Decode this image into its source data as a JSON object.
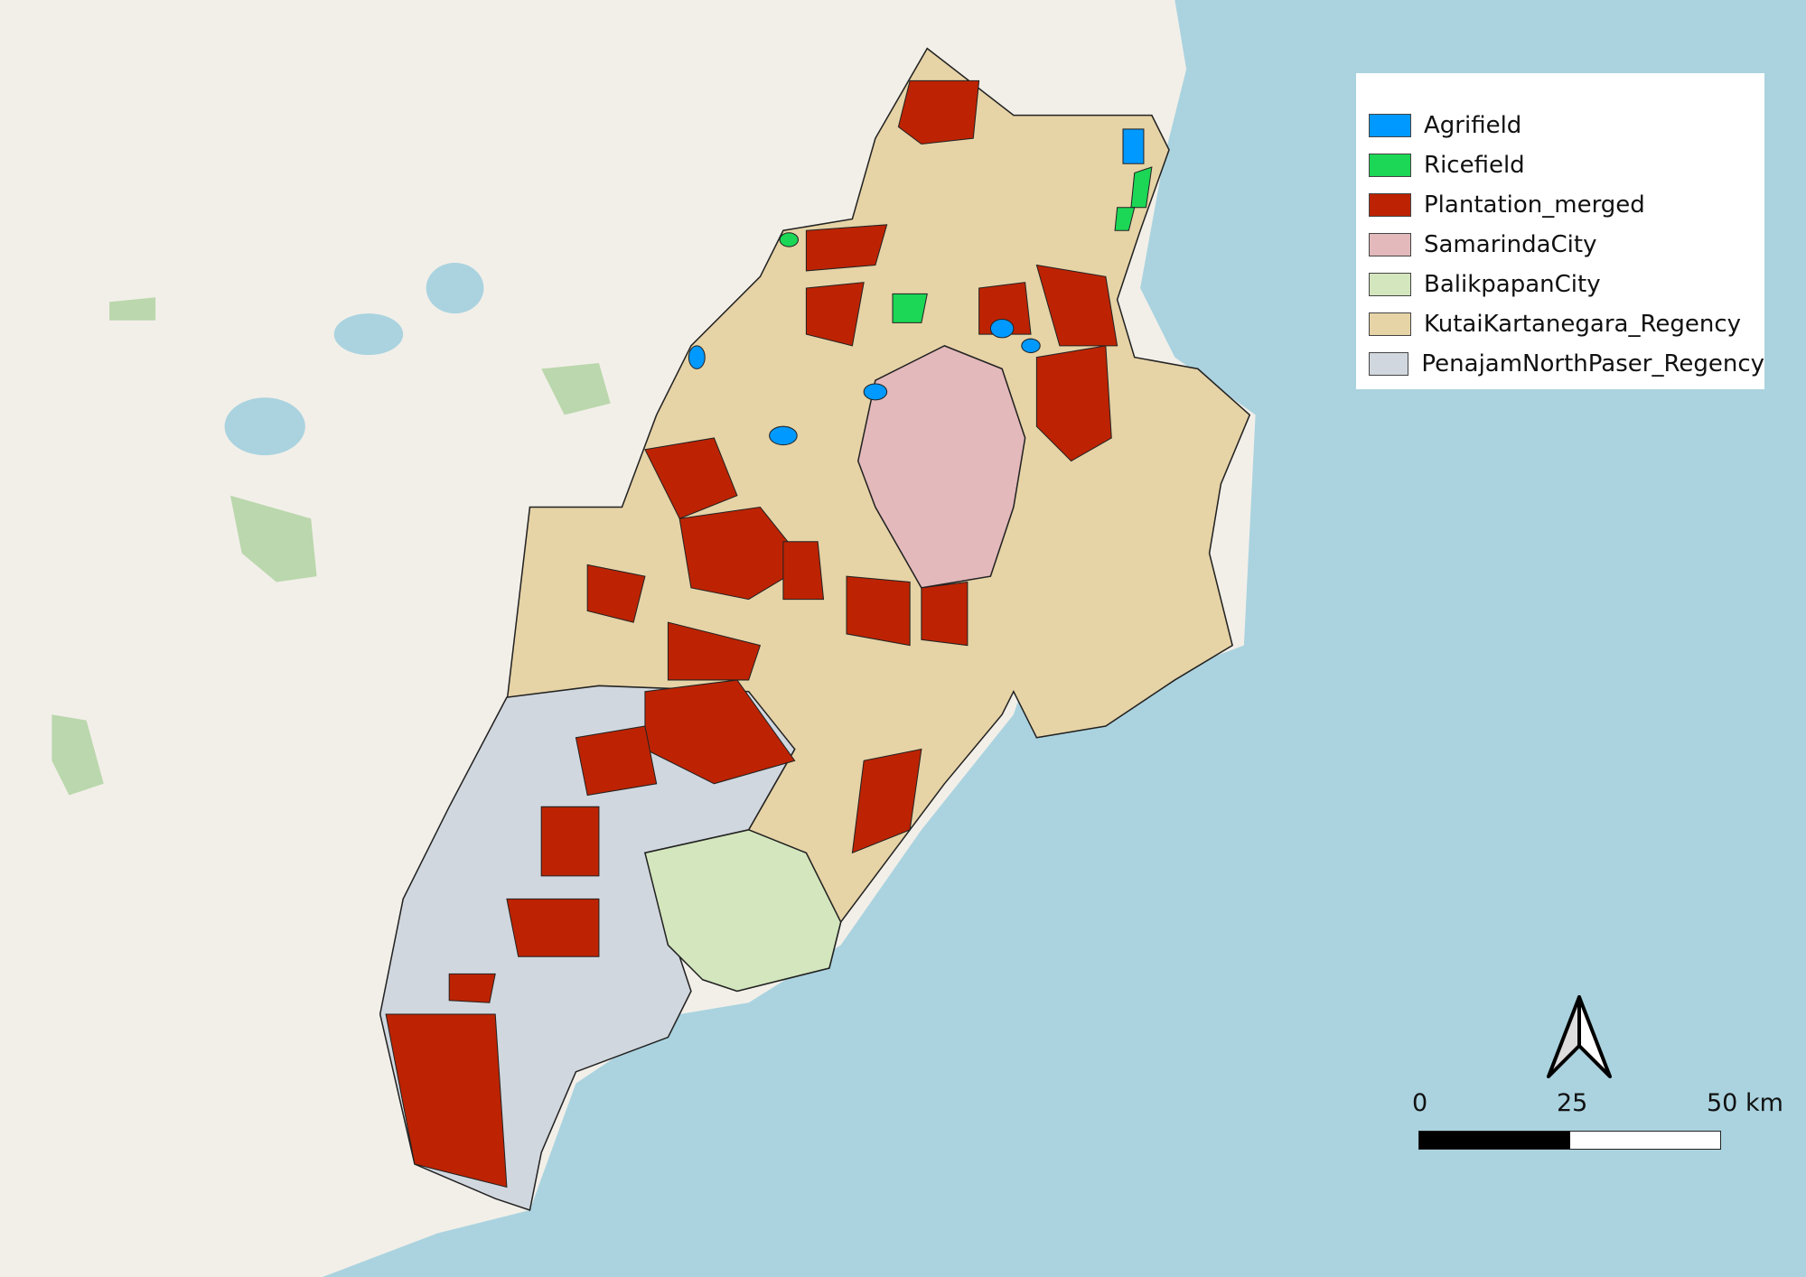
{
  "legend": {
    "items": [
      {
        "label": "Agrifield",
        "color": "#0099ff"
      },
      {
        "label": "Ricefield",
        "color": "#1bd755"
      },
      {
        "label": "Plantation_merged",
        "color": "#bd2302"
      },
      {
        "label": "SamarindaCity",
        "color": "#e3b9bb"
      },
      {
        "label": "BalikpapanCity",
        "color": "#d3e6bd"
      },
      {
        "label": "KutaiKartanegara_Regency",
        "color": "#e6d3a6"
      },
      {
        "label": "PenajamNorthPaser_Regency",
        "color": "#d1d7de"
      }
    ]
  },
  "scale_bar": {
    "labels": [
      "0",
      "25",
      "50 km"
    ]
  },
  "north_arrow": {
    "icon": "north-arrow-icon"
  },
  "colors": {
    "sea": "#aad3df",
    "land": "#f2efe9"
  }
}
